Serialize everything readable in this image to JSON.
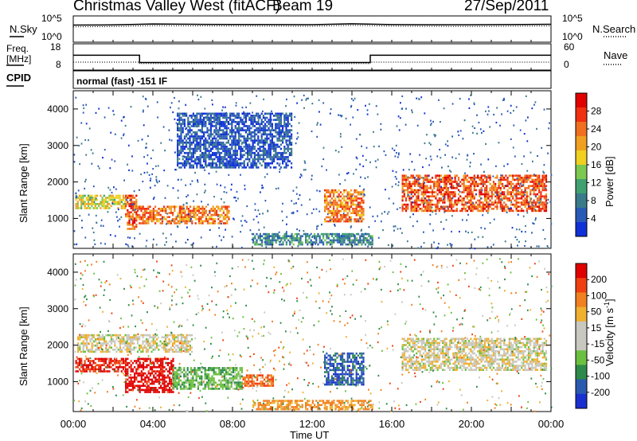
{
  "header": {
    "station": "Christmas Valley West (fitACF)",
    "beam": "Beam 19",
    "date": "27/Sep/2011"
  },
  "status_panel": {
    "left_labels": [
      "N.Sky",
      "Freq.",
      "[MHz]",
      "CPID"
    ],
    "right_labels": [
      "N.Search",
      "Nave"
    ],
    "left_top_ticks": [
      "10^5",
      "10^0"
    ],
    "right_top_ticks": [
      "10^5",
      "10^0"
    ],
    "left_freq_ticks": [
      "18",
      "8"
    ],
    "right_nave_ticks": [
      "60",
      "0"
    ],
    "cpid_text": "normal (fast) -151 IF"
  },
  "colors": {
    "power_scale": [
      "#1030d8",
      "#2a5ab8",
      "#3a7a8a",
      "#40a070",
      "#7cc850",
      "#f0d020",
      "#f0a020",
      "#f07020",
      "#f03010",
      "#e00000"
    ],
    "velocity_scale": [
      "#1a2fd0",
      "#2a5ab0",
      "#2d8a4a",
      "#6cc040",
      "#c8c8c0",
      "#c8c8c0",
      "#f0b030",
      "#f08020",
      "#f04010",
      "#e00000"
    ]
  },
  "chart_data": [
    {
      "type": "line",
      "title": "N.Sky / N.Search",
      "x": [
        "00:00",
        "02:00",
        "04:00",
        "06:00",
        "08:00",
        "10:00",
        "12:00",
        "14:00",
        "16:00",
        "18:00",
        "20:00",
        "22:00",
        "24:00"
      ],
      "series": [
        {
          "name": "N.Sky",
          "values": [
            2000,
            2200,
            3500,
            3000,
            2800,
            2600,
            2500,
            4000,
            2600,
            2400,
            2300,
            2600,
            3000
          ]
        },
        {
          "name": "N.Search",
          "values": [
            1500,
            1700,
            2800,
            2500,
            2300,
            2100,
            2000,
            3300,
            2100,
            1900,
            1800,
            2100,
            2400
          ]
        }
      ],
      "ylim": [
        "10^0",
        "10^5"
      ]
    },
    {
      "type": "line",
      "title": "Freq. / Nave",
      "x": [
        "00:00",
        "03:20",
        "03:20",
        "14:55",
        "14:55",
        "24:00"
      ],
      "series": [
        {
          "name": "Freq.",
          "values": [
            14,
            14,
            10.5,
            10.5,
            14,
            14
          ]
        },
        {
          "name": "Nave",
          "values": [
            16,
            16,
            12,
            12,
            16,
            16
          ]
        }
      ],
      "ylim_left": [
        8,
        18
      ],
      "ylim_right": [
        0,
        60
      ]
    },
    {
      "type": "heatmap",
      "ylabel": "Slant Range [km]",
      "colorbar_label": "Power [dB]",
      "colorbar_ticks": [
        4,
        8,
        12,
        16,
        20,
        24,
        28
      ],
      "yticks": [
        1000,
        2000,
        3000,
        4000
      ],
      "xticks": [
        "00:00",
        "04:00",
        "08:00",
        "12:00",
        "16:00",
        "20:00",
        "00:00"
      ],
      "ylim": [
        180,
        4500
      ],
      "features": [
        {
          "t0": 0.1,
          "t1": 2.6,
          "r0": 1300,
          "r1": 1650,
          "p": 18
        },
        {
          "t0": 2.6,
          "t1": 3.2,
          "r0": 700,
          "r1": 1650,
          "p": 26
        },
        {
          "t0": 3.2,
          "t1": 7.8,
          "r0": 850,
          "r1": 1350,
          "p": 24
        },
        {
          "t0": 5.2,
          "t1": 11.0,
          "r0": 2400,
          "r1": 3900,
          "p": 6
        },
        {
          "t0": 12.6,
          "t1": 14.6,
          "r0": 900,
          "r1": 1800,
          "p": 24
        },
        {
          "t0": 16.5,
          "t1": 23.8,
          "r0": 1200,
          "r1": 2200,
          "p": 26
        },
        {
          "t0": 9.0,
          "t1": 15.0,
          "r0": 300,
          "r1": 600,
          "p": 10
        }
      ]
    },
    {
      "type": "heatmap",
      "ylabel": "Slant Range [km]",
      "xlabel": "Time UT",
      "colorbar_label": "Velocity [m s^-1]",
      "colorbar_ticks": [
        200,
        100,
        50,
        15,
        -15,
        -50,
        -100,
        -200
      ],
      "yticks": [
        1000,
        2000,
        3000,
        4000
      ],
      "xticks": [
        "00:00",
        "04:00",
        "08:00",
        "12:00",
        "16:00",
        "20:00",
        "00:00"
      ],
      "ylim": [
        180,
        4500
      ],
      "features": [
        {
          "t0": 0.1,
          "t1": 2.6,
          "r0": 1300,
          "r1": 1650,
          "v": -150
        },
        {
          "t0": 2.6,
          "t1": 5.0,
          "r0": 700,
          "r1": 1650,
          "v": -180
        },
        {
          "t0": 5.0,
          "t1": 8.5,
          "r0": 800,
          "r1": 1400,
          "v": 60
        },
        {
          "t0": 8.5,
          "t1": 10.0,
          "r0": 900,
          "r1": 1200,
          "v": -100
        },
        {
          "t0": 12.6,
          "t1": 14.6,
          "r0": 900,
          "r1": 1800,
          "v": 180
        },
        {
          "t0": 16.5,
          "t1": 23.8,
          "r0": 1300,
          "r1": 2200,
          "v": 0
        },
        {
          "t0": 0.2,
          "t1": 6.0,
          "r0": 1800,
          "r1": 2300,
          "v": 0
        },
        {
          "t0": 9.0,
          "t1": 15.0,
          "r0": 250,
          "r1": 500,
          "v": -60
        }
      ]
    }
  ],
  "xlabel": "Time UT"
}
